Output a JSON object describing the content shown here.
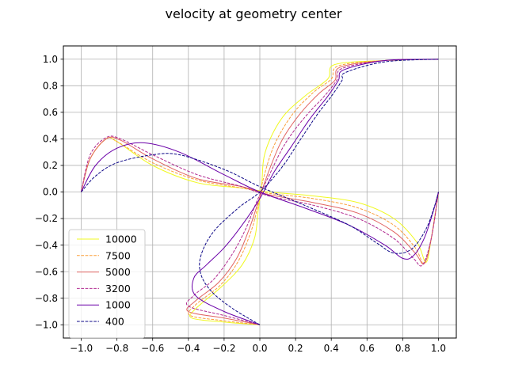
{
  "chart_data": {
    "type": "line",
    "title": "velocity at geometry center",
    "xlabel": "",
    "ylabel": "",
    "xlim": [
      -1.1,
      1.1
    ],
    "ylim": [
      -1.1,
      1.1
    ],
    "xticks": [
      -1.0,
      -0.8,
      -0.6,
      -0.4,
      -0.2,
      0.0,
      0.2,
      0.4,
      0.6,
      0.8,
      1.0
    ],
    "yticks": [
      -1.0,
      -0.8,
      -0.6,
      -0.4,
      -0.2,
      0.0,
      0.2,
      0.4,
      0.6,
      0.8,
      1.0
    ],
    "xtick_labels": [
      "−1.0",
      "−0.8",
      "−0.6",
      "−0.4",
      "−0.2",
      "0.0",
      "0.2",
      "0.4",
      "0.6",
      "0.8",
      "1.0"
    ],
    "ytick_labels": [
      "−1.0",
      "−0.8",
      "−0.6",
      "−0.4",
      "−0.2",
      "0.0",
      "0.2",
      "0.4",
      "0.6",
      "0.8",
      "1.0"
    ],
    "grid": true,
    "legend_position": "lower-left",
    "series": [
      {
        "name": "10000",
        "color": "#f0f921",
        "dash": "solid",
        "curve_u": [
          [
            0.0,
            -1.0
          ],
          [
            -0.2,
            -0.98
          ],
          [
            -0.38,
            -0.95
          ],
          [
            -0.36,
            -0.88
          ],
          [
            -0.22,
            -0.72
          ],
          [
            -0.1,
            -0.55
          ],
          [
            -0.03,
            -0.35
          ],
          [
            -0.01,
            -0.15
          ],
          [
            0.01,
            0.05
          ],
          [
            0.03,
            0.3
          ],
          [
            0.12,
            0.55
          ],
          [
            0.25,
            0.72
          ],
          [
            0.38,
            0.85
          ],
          [
            0.42,
            0.96
          ],
          [
            0.7,
            0.99
          ],
          [
            1.0,
            1.0
          ]
        ],
        "curve_v": [
          [
            -1.0,
            0.0
          ],
          [
            -0.95,
            0.25
          ],
          [
            -0.86,
            0.4
          ],
          [
            -0.8,
            0.38
          ],
          [
            -0.6,
            0.2
          ],
          [
            -0.35,
            0.07
          ],
          [
            -0.1,
            0.03
          ],
          [
            0.05,
            0.0
          ],
          [
            0.3,
            -0.03
          ],
          [
            0.55,
            -0.08
          ],
          [
            0.75,
            -0.2
          ],
          [
            0.88,
            -0.38
          ],
          [
            0.93,
            -0.53
          ],
          [
            0.96,
            -0.35
          ],
          [
            1.0,
            0.0
          ]
        ]
      },
      {
        "name": "7500",
        "color": "#fb9f3a",
        "dash": "dashed",
        "curve_u": [
          [
            0.0,
            -1.0
          ],
          [
            -0.2,
            -0.97
          ],
          [
            -0.39,
            -0.93
          ],
          [
            -0.36,
            -0.85
          ],
          [
            -0.22,
            -0.7
          ],
          [
            -0.12,
            -0.52
          ],
          [
            -0.05,
            -0.3
          ],
          [
            -0.01,
            -0.1
          ],
          [
            0.02,
            0.1
          ],
          [
            0.08,
            0.35
          ],
          [
            0.18,
            0.58
          ],
          [
            0.3,
            0.75
          ],
          [
            0.4,
            0.85
          ],
          [
            0.44,
            0.95
          ],
          [
            0.7,
            0.99
          ],
          [
            1.0,
            1.0
          ]
        ],
        "curve_v": [
          [
            -1.0,
            0.0
          ],
          [
            -0.95,
            0.25
          ],
          [
            -0.86,
            0.4
          ],
          [
            -0.8,
            0.38
          ],
          [
            -0.6,
            0.22
          ],
          [
            -0.35,
            0.09
          ],
          [
            -0.1,
            0.03
          ],
          [
            0.05,
            -0.01
          ],
          [
            0.3,
            -0.05
          ],
          [
            0.55,
            -0.12
          ],
          [
            0.75,
            -0.25
          ],
          [
            0.87,
            -0.42
          ],
          [
            0.92,
            -0.54
          ],
          [
            0.96,
            -0.35
          ],
          [
            1.0,
            0.0
          ]
        ]
      },
      {
        "name": "5000",
        "color": "#e16462",
        "dash": "solid",
        "curve_u": [
          [
            0.0,
            -1.0
          ],
          [
            -0.2,
            -0.95
          ],
          [
            -0.4,
            -0.9
          ],
          [
            -0.36,
            -0.82
          ],
          [
            -0.23,
            -0.68
          ],
          [
            -0.13,
            -0.5
          ],
          [
            -0.06,
            -0.28
          ],
          [
            -0.01,
            -0.08
          ],
          [
            0.04,
            0.12
          ],
          [
            0.12,
            0.38
          ],
          [
            0.22,
            0.58
          ],
          [
            0.33,
            0.74
          ],
          [
            0.42,
            0.84
          ],
          [
            0.45,
            0.94
          ],
          [
            0.7,
            0.99
          ],
          [
            1.0,
            1.0
          ]
        ],
        "curve_v": [
          [
            -1.0,
            0.0
          ],
          [
            -0.95,
            0.25
          ],
          [
            -0.86,
            0.4
          ],
          [
            -0.78,
            0.39
          ],
          [
            -0.6,
            0.25
          ],
          [
            -0.35,
            0.1
          ],
          [
            -0.1,
            0.04
          ],
          [
            0.05,
            -0.02
          ],
          [
            0.3,
            -0.08
          ],
          [
            0.55,
            -0.16
          ],
          [
            0.75,
            -0.3
          ],
          [
            0.87,
            -0.46
          ],
          [
            0.92,
            -0.54
          ],
          [
            0.96,
            -0.35
          ],
          [
            1.0,
            0.0
          ]
        ]
      },
      {
        "name": "3200",
        "color": "#b12a90",
        "dash": "dashed",
        "curve_u": [
          [
            0.0,
            -1.0
          ],
          [
            -0.2,
            -0.93
          ],
          [
            -0.4,
            -0.86
          ],
          [
            -0.37,
            -0.78
          ],
          [
            -0.26,
            -0.66
          ],
          [
            -0.16,
            -0.48
          ],
          [
            -0.08,
            -0.28
          ],
          [
            -0.02,
            -0.08
          ],
          [
            0.05,
            0.12
          ],
          [
            0.14,
            0.36
          ],
          [
            0.25,
            0.56
          ],
          [
            0.36,
            0.72
          ],
          [
            0.43,
            0.84
          ],
          [
            0.46,
            0.93
          ],
          [
            0.7,
            0.99
          ],
          [
            1.0,
            1.0
          ]
        ],
        "curve_v": [
          [
            -1.0,
            0.0
          ],
          [
            -0.95,
            0.28
          ],
          [
            -0.86,
            0.41
          ],
          [
            -0.78,
            0.4
          ],
          [
            -0.6,
            0.28
          ],
          [
            -0.35,
            0.13
          ],
          [
            -0.1,
            0.04
          ],
          [
            0.05,
            -0.03
          ],
          [
            0.3,
            -0.1
          ],
          [
            0.55,
            -0.2
          ],
          [
            0.75,
            -0.35
          ],
          [
            0.86,
            -0.5
          ],
          [
            0.91,
            -0.55
          ],
          [
            0.96,
            -0.35
          ],
          [
            1.0,
            0.0
          ]
        ]
      },
      {
        "name": "1000",
        "color": "#6a00a8",
        "dash": "solid",
        "curve_u": [
          [
            0.0,
            -1.0
          ],
          [
            -0.2,
            -0.9
          ],
          [
            -0.36,
            -0.78
          ],
          [
            -0.37,
            -0.65
          ],
          [
            -0.3,
            -0.55
          ],
          [
            -0.2,
            -0.42
          ],
          [
            -0.1,
            -0.25
          ],
          [
            0.0,
            -0.05
          ],
          [
            0.08,
            0.15
          ],
          [
            0.18,
            0.35
          ],
          [
            0.28,
            0.55
          ],
          [
            0.38,
            0.72
          ],
          [
            0.44,
            0.84
          ],
          [
            0.47,
            0.92
          ],
          [
            0.7,
            0.99
          ],
          [
            1.0,
            1.0
          ]
        ],
        "curve_v": [
          [
            -1.0,
            0.0
          ],
          [
            -0.92,
            0.2
          ],
          [
            -0.8,
            0.33
          ],
          [
            -0.65,
            0.37
          ],
          [
            -0.45,
            0.3
          ],
          [
            -0.2,
            0.13
          ],
          [
            0.0,
            0.0
          ],
          [
            0.25,
            -0.12
          ],
          [
            0.5,
            -0.25
          ],
          [
            0.7,
            -0.4
          ],
          [
            0.8,
            -0.5
          ],
          [
            0.86,
            -0.48
          ],
          [
            0.92,
            -0.35
          ],
          [
            0.97,
            -0.15
          ],
          [
            1.0,
            0.0
          ]
        ]
      },
      {
        "name": "400",
        "color": "#0d0887",
        "dash": "dashed",
        "curve_u": [
          [
            0.0,
            -1.0
          ],
          [
            -0.15,
            -0.88
          ],
          [
            -0.27,
            -0.75
          ],
          [
            -0.33,
            -0.62
          ],
          [
            -0.33,
            -0.48
          ],
          [
            -0.26,
            -0.3
          ],
          [
            -0.12,
            -0.12
          ],
          [
            0.0,
            0.0
          ],
          [
            0.12,
            0.18
          ],
          [
            0.22,
            0.38
          ],
          [
            0.32,
            0.58
          ],
          [
            0.4,
            0.72
          ],
          [
            0.46,
            0.84
          ],
          [
            0.48,
            0.9
          ],
          [
            0.7,
            0.98
          ],
          [
            1.0,
            1.0
          ]
        ],
        "curve_v": [
          [
            -1.0,
            0.0
          ],
          [
            -0.92,
            0.12
          ],
          [
            -0.8,
            0.22
          ],
          [
            -0.6,
            0.28
          ],
          [
            -0.45,
            0.28
          ],
          [
            -0.2,
            0.17
          ],
          [
            0.0,
            0.04
          ],
          [
            0.25,
            -0.1
          ],
          [
            0.5,
            -0.25
          ],
          [
            0.65,
            -0.38
          ],
          [
            0.75,
            -0.46
          ],
          [
            0.85,
            -0.43
          ],
          [
            0.93,
            -0.28
          ],
          [
            0.98,
            -0.1
          ],
          [
            1.0,
            0.0
          ]
        ]
      }
    ]
  }
}
